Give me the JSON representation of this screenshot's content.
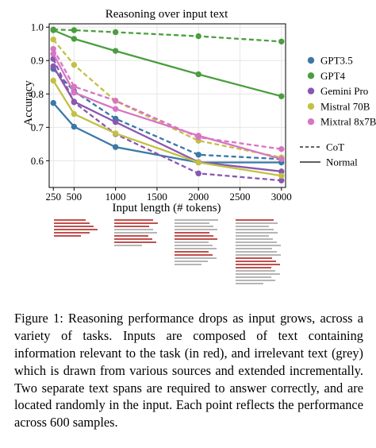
{
  "chart_data": {
    "type": "line",
    "title": "Reasoning over input text",
    "xlabel": "Input length (# tokens)",
    "ylabel": "Accuracy",
    "x": [
      250,
      500,
      1000,
      2000,
      3000
    ],
    "xlim": [
      200,
      3050
    ],
    "ylim": [
      0.52,
      1.01
    ],
    "xticks": [
      250,
      500,
      1000,
      1500,
      2000,
      2500,
      3000
    ],
    "yticks": [
      0.6,
      0.7,
      0.8,
      0.9,
      1.0
    ],
    "grid": true,
    "legend_position": "right",
    "series": [
      {
        "name": "GPT3.5",
        "color": "#3a78a8",
        "style": "Normal",
        "values": [
          0.773,
          0.702,
          0.641,
          0.595,
          0.595
        ]
      },
      {
        "name": "GPT3.5",
        "color": "#3a78a8",
        "style": "CoT",
        "values": [
          0.875,
          0.808,
          0.726,
          0.618,
          0.605
        ]
      },
      {
        "name": "GPT4",
        "color": "#4b9e3e",
        "style": "Normal",
        "values": [
          0.991,
          0.965,
          0.929,
          0.859,
          0.793
        ]
      },
      {
        "name": "GPT4",
        "color": "#4b9e3e",
        "style": "CoT",
        "values": [
          0.993,
          0.991,
          0.985,
          0.973,
          0.957
        ]
      },
      {
        "name": "Gemini Pro",
        "color": "#8a56b0",
        "style": "Normal",
        "values": [
          0.883,
          0.777,
          0.716,
          0.596,
          0.568
        ]
      },
      {
        "name": "Gemini Pro",
        "color": "#8a56b0",
        "style": "CoT",
        "values": [
          0.905,
          0.775,
          0.68,
          0.562,
          0.541
        ]
      },
      {
        "name": "Mistral 70B",
        "color": "#c2c143",
        "style": "Normal",
        "values": [
          0.84,
          0.74,
          0.682,
          0.595,
          0.555
        ]
      },
      {
        "name": "Mistral 70B",
        "color": "#c2c143",
        "style": "CoT",
        "values": [
          0.963,
          0.887,
          0.779,
          0.66,
          0.61
        ]
      },
      {
        "name": "Mixtral 8x7B",
        "color": "#d775c4",
        "style": "Normal",
        "values": [
          0.92,
          0.804,
          0.755,
          0.675,
          0.605
        ]
      },
      {
        "name": "Mixtral 8x7B",
        "color": "#d775c4",
        "style": "CoT",
        "values": [
          0.935,
          0.822,
          0.78,
          0.67,
          0.635
        ]
      }
    ],
    "legend": {
      "models": [
        {
          "label": "GPT3.5",
          "color": "#3a78a8"
        },
        {
          "label": "GPT4",
          "color": "#4b9e3e"
        },
        {
          "label": "Gemini Pro",
          "color": "#8a56b0"
        },
        {
          "label": "Mistral 70B",
          "color": "#c2c143"
        },
        {
          "label": "Mixtral 8x7B",
          "color": "#d775c4"
        }
      ],
      "styles": [
        {
          "label": "CoT",
          "dash": true
        },
        {
          "label": "Normal",
          "dash": false
        }
      ]
    }
  },
  "caption": {
    "text": "Figure 1: Reasoning performance drops as input grows, across a variety of tasks. Inputs are composed of text containing information relevant to the task (in red), and irrelevant text (grey) which is drawn from various sources and extended incrementally. Two separate text spans are required to answer correctly, and are located randomly in the input. Each point reflects the performance across 600 samples."
  },
  "colors": {
    "relevant_text": "#c0504d",
    "irrelevant_text": "#b5b5b5",
    "grid": "#e6e6e6"
  }
}
